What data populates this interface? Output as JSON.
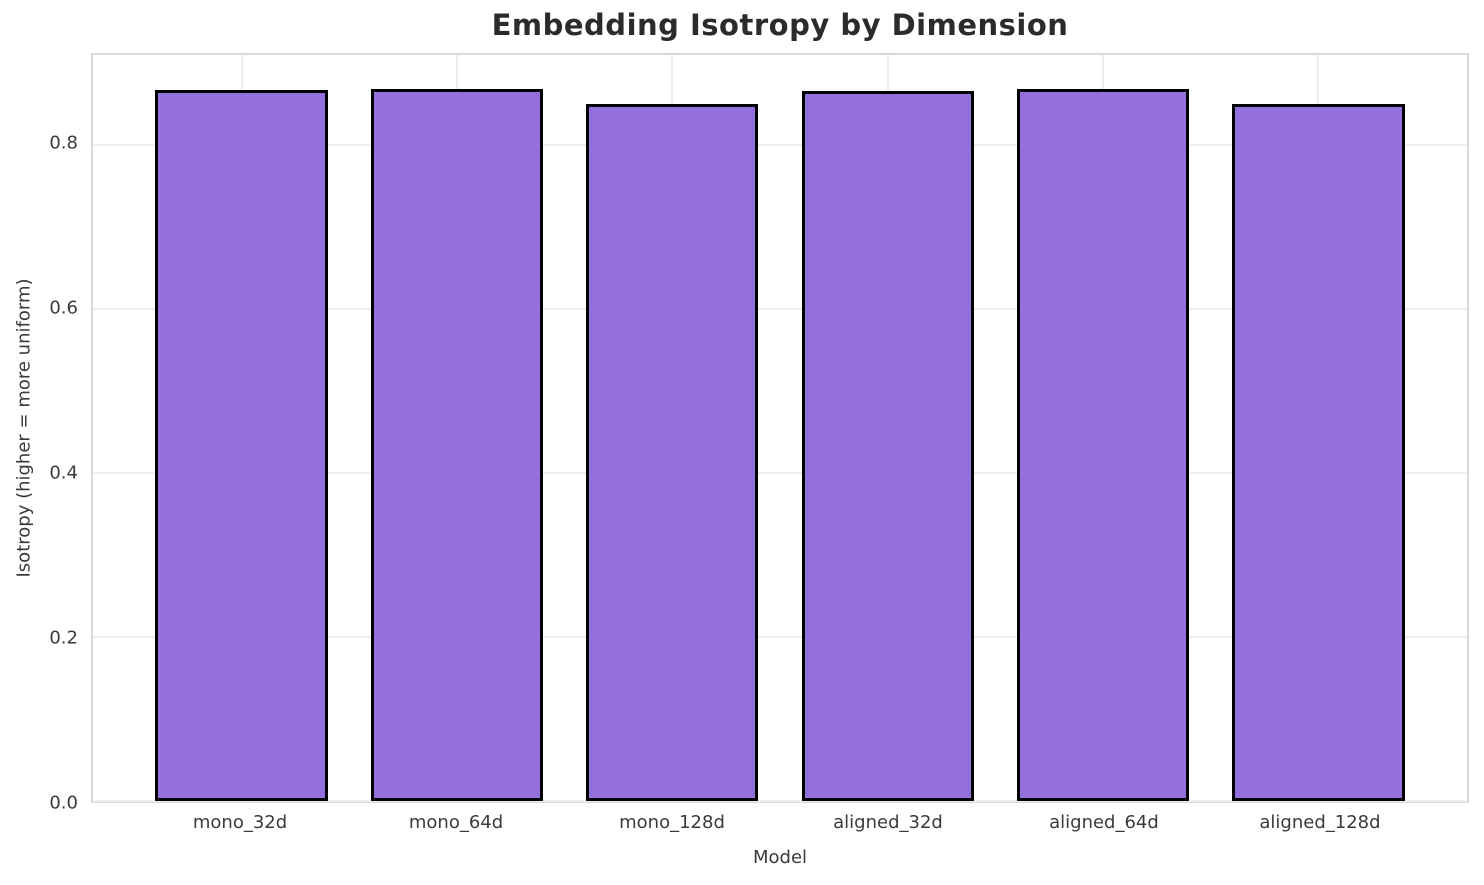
{
  "chart_data": {
    "type": "bar",
    "title": "Embedding Isotropy by Dimension",
    "xlabel": "Model",
    "ylabel": "Isotropy (higher = more uniform)",
    "categories": [
      "mono_32d",
      "mono_64d",
      "mono_128d",
      "aligned_32d",
      "aligned_64d",
      "aligned_128d"
    ],
    "values": [
      0.866,
      0.868,
      0.849,
      0.865,
      0.868,
      0.849
    ],
    "yticks": [
      0.0,
      0.2,
      0.4,
      0.6,
      0.8
    ],
    "ytick_labels": [
      "0.0",
      "0.2",
      "0.4",
      "0.6",
      "0.8"
    ],
    "ylim": [
      0,
      0.9091
    ],
    "xlim": [
      -0.69,
      5.69
    ],
    "bar_width": 0.8,
    "grid": true,
    "legend": "none",
    "colors": {
      "bar_fill": "#9370DB",
      "bar_edge": "#000000",
      "grid_line": "#ececec",
      "spine": "#d9d9d9",
      "title_text": "#2b2b2b",
      "tick_text": "#3a3a3a",
      "background": "#ffffff"
    }
  }
}
